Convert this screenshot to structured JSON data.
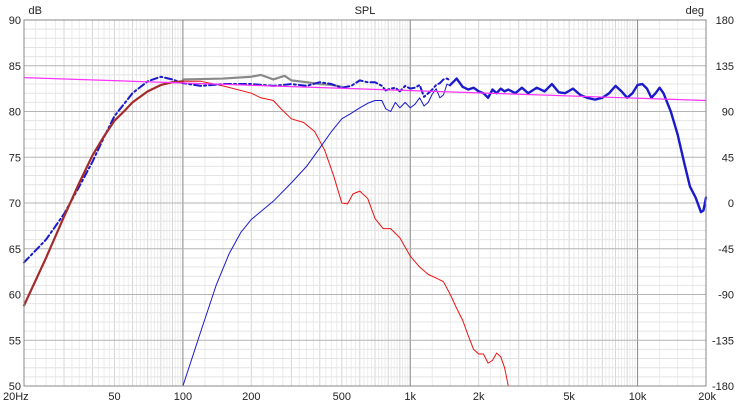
{
  "chart_data": {
    "type": "line",
    "title": "SPL",
    "y_left_unit": "dB",
    "y_right_unit": "deg",
    "x_scale": "log",
    "x_range": [
      20,
      20000
    ],
    "y_left_range": [
      50,
      90
    ],
    "y_right_range": [
      -180,
      180
    ],
    "grid": true,
    "x_major_ticks": [
      20,
      50,
      100,
      200,
      500,
      1000,
      2000,
      5000,
      10000,
      20000
    ],
    "x_tick_labels": [
      "20Hz",
      "50",
      "100",
      "200",
      "500",
      "1k",
      "2k",
      "5k",
      "10k",
      "20k"
    ],
    "y_left_ticks": [
      50,
      55,
      60,
      65,
      70,
      75,
      80,
      85,
      90
    ],
    "y_left_tick_labels": [
      "50",
      "55",
      "60",
      "65",
      "70",
      "75",
      "80",
      "85",
      "90"
    ],
    "y_right_ticks": [
      -180,
      -135,
      -90,
      -45,
      0,
      45,
      90,
      135,
      180
    ],
    "y_right_tick_labels": [
      "-180",
      "-135",
      "-90",
      "-45",
      "0",
      "45",
      "90",
      "135",
      "180"
    ],
    "series": [
      {
        "color": "#8a8a8a",
        "width": 2.2,
        "style": "solid",
        "points": [
          [
            100,
            83.5
          ],
          [
            150,
            83.6
          ],
          [
            200,
            83.8
          ],
          [
            220,
            84.0
          ],
          [
            250,
            83.5
          ],
          [
            280,
            83.9
          ],
          [
            300,
            83.4
          ],
          [
            350,
            83.2
          ],
          [
            400,
            83.0
          ],
          [
            450,
            82.9
          ],
          [
            500,
            82.7
          ]
        ]
      },
      {
        "color": "#ee1111",
        "width": 1,
        "style": "solid",
        "points": [
          [
            100,
            83.3
          ],
          [
            120,
            83.3
          ],
          [
            150,
            82.8
          ],
          [
            200,
            82.0
          ],
          [
            220,
            81.5
          ],
          [
            250,
            81.2
          ],
          [
            270,
            80.3
          ],
          [
            300,
            79.2
          ],
          [
            340,
            78.8
          ],
          [
            380,
            77.8
          ],
          [
            420,
            75.8
          ],
          [
            460,
            73.0
          ],
          [
            500,
            70.0
          ],
          [
            530,
            69.9
          ],
          [
            560,
            71.0
          ],
          [
            600,
            71.3
          ],
          [
            650,
            70.5
          ],
          [
            700,
            68.3
          ],
          [
            760,
            67.2
          ],
          [
            820,
            67.2
          ],
          [
            900,
            66.2
          ],
          [
            1000,
            64.2
          ],
          [
            1100,
            63.0
          ],
          [
            1200,
            62.2
          ],
          [
            1300,
            61.8
          ],
          [
            1400,
            61.4
          ],
          [
            1500,
            60.0
          ],
          [
            1600,
            58.5
          ],
          [
            1700,
            57.2
          ],
          [
            1800,
            55.5
          ],
          [
            1900,
            54.0
          ],
          [
            2000,
            53.5
          ],
          [
            2100,
            53.5
          ],
          [
            2200,
            52.5
          ],
          [
            2300,
            52.8
          ],
          [
            2400,
            53.6
          ],
          [
            2500,
            53.2
          ],
          [
            2600,
            52.0
          ],
          [
            2700,
            50.0
          ]
        ]
      },
      {
        "color": "#1a1acc",
        "width": 1,
        "style": "solid",
        "points": [
          [
            100,
            50.0
          ],
          [
            120,
            56.0
          ],
          [
            140,
            61.0
          ],
          [
            160,
            64.5
          ],
          [
            180,
            66.8
          ],
          [
            200,
            68.2
          ],
          [
            250,
            70.2
          ],
          [
            300,
            72.2
          ],
          [
            350,
            74.0
          ],
          [
            400,
            76.0
          ],
          [
            450,
            77.8
          ],
          [
            500,
            79.2
          ],
          [
            550,
            79.8
          ],
          [
            600,
            80.4
          ],
          [
            650,
            80.9
          ],
          [
            700,
            81.2
          ],
          [
            750,
            81.2
          ],
          [
            780,
            80.3
          ],
          [
            820,
            80.0
          ],
          [
            860,
            81.0
          ],
          [
            900,
            80.4
          ],
          [
            950,
            81.0
          ],
          [
            1000,
            80.4
          ],
          [
            1050,
            80.8
          ],
          [
            1100,
            81.5
          ],
          [
            1150,
            80.6
          ],
          [
            1200,
            81.0
          ],
          [
            1250,
            81.9
          ],
          [
            1300,
            82.5
          ],
          [
            1350,
            81.5
          ],
          [
            1400,
            81.8
          ],
          [
            1450,
            83.0
          ],
          [
            1500,
            82.8
          ]
        ]
      },
      {
        "color": "#1a1acc",
        "width": 2.4,
        "style": "solid",
        "points": [
          [
            1500,
            82.9
          ],
          [
            1600,
            83.6
          ],
          [
            1700,
            82.7
          ],
          [
            1800,
            82.4
          ],
          [
            1900,
            82.6
          ],
          [
            2000,
            82.2
          ],
          [
            2100,
            82.0
          ],
          [
            2200,
            81.5
          ],
          [
            2300,
            82.4
          ],
          [
            2400,
            82.0
          ],
          [
            2500,
            82.5
          ],
          [
            2600,
            82.2
          ],
          [
            2700,
            82.4
          ],
          [
            2900,
            82.0
          ],
          [
            3100,
            82.6
          ],
          [
            3300,
            82.0
          ],
          [
            3600,
            82.6
          ],
          [
            3900,
            82.2
          ],
          [
            4200,
            83.0
          ],
          [
            4500,
            82.1
          ],
          [
            4800,
            82.0
          ],
          [
            5200,
            82.5
          ],
          [
            5600,
            81.8
          ],
          [
            6000,
            81.5
          ],
          [
            6500,
            81.3
          ],
          [
            7000,
            81.5
          ],
          [
            7500,
            82.0
          ],
          [
            8000,
            82.8
          ],
          [
            8500,
            82.2
          ],
          [
            9000,
            81.5
          ],
          [
            9500,
            82.0
          ],
          [
            10000,
            82.9
          ],
          [
            10500,
            83.0
          ],
          [
            11000,
            82.5
          ],
          [
            11500,
            81.5
          ],
          [
            12000,
            82.0
          ],
          [
            12500,
            82.6
          ],
          [
            13000,
            82.0
          ],
          [
            14000,
            80.0
          ],
          [
            15000,
            77.5
          ],
          [
            16000,
            74.5
          ],
          [
            17000,
            71.8
          ],
          [
            18000,
            70.6
          ],
          [
            18500,
            69.8
          ],
          [
            19000,
            69.0
          ],
          [
            19500,
            69.2
          ],
          [
            20000,
            70.6
          ]
        ]
      },
      {
        "color": "#1a1acc",
        "width": 2,
        "style": "dashdot",
        "points": [
          [
            20,
            63.5
          ],
          [
            25,
            66.0
          ],
          [
            30,
            68.8
          ],
          [
            35,
            71.8
          ],
          [
            40,
            74.5
          ],
          [
            45,
            77.2
          ],
          [
            50,
            79.5
          ],
          [
            55,
            80.8
          ],
          [
            60,
            82.0
          ],
          [
            70,
            83.3
          ],
          [
            80,
            83.8
          ],
          [
            90,
            83.5
          ],
          [
            100,
            83.1
          ],
          [
            120,
            82.8
          ],
          [
            150,
            83.0
          ],
          [
            200,
            83.0
          ],
          [
            250,
            82.8
          ],
          [
            300,
            83.0
          ],
          [
            350,
            82.8
          ],
          [
            400,
            83.2
          ],
          [
            450,
            83.0
          ],
          [
            500,
            82.6
          ],
          [
            550,
            82.8
          ],
          [
            600,
            83.4
          ],
          [
            650,
            83.2
          ],
          [
            700,
            83.2
          ],
          [
            750,
            82.8
          ],
          [
            780,
            82.3
          ],
          [
            820,
            82.5
          ],
          [
            860,
            82.6
          ],
          [
            900,
            82.2
          ],
          [
            950,
            82.8
          ],
          [
            1000,
            82.5
          ],
          [
            1050,
            82.6
          ],
          [
            1100,
            82.9
          ],
          [
            1150,
            81.6
          ],
          [
            1200,
            82.0
          ],
          [
            1250,
            82.4
          ],
          [
            1300,
            82.9
          ],
          [
            1350,
            83.1
          ],
          [
            1400,
            83.5
          ],
          [
            1450,
            83.6
          ],
          [
            1500,
            83.4
          ]
        ]
      },
      {
        "color": "#a52a2a",
        "width": 2.2,
        "style": "solid",
        "points": [
          [
            20,
            58.8
          ],
          [
            25,
            64.0
          ],
          [
            30,
            68.5
          ],
          [
            35,
            72.2
          ],
          [
            40,
            75.2
          ],
          [
            45,
            77.3
          ],
          [
            50,
            79.0
          ],
          [
            55,
            80.0
          ],
          [
            60,
            81.0
          ],
          [
            70,
            82.2
          ],
          [
            80,
            82.9
          ],
          [
            90,
            83.2
          ],
          [
            100,
            83.3
          ]
        ]
      },
      {
        "color": "#ff33ff",
        "width": 1.2,
        "style": "solid",
        "points": [
          [
            20,
            83.7
          ],
          [
            20000,
            81.2
          ]
        ]
      }
    ]
  }
}
